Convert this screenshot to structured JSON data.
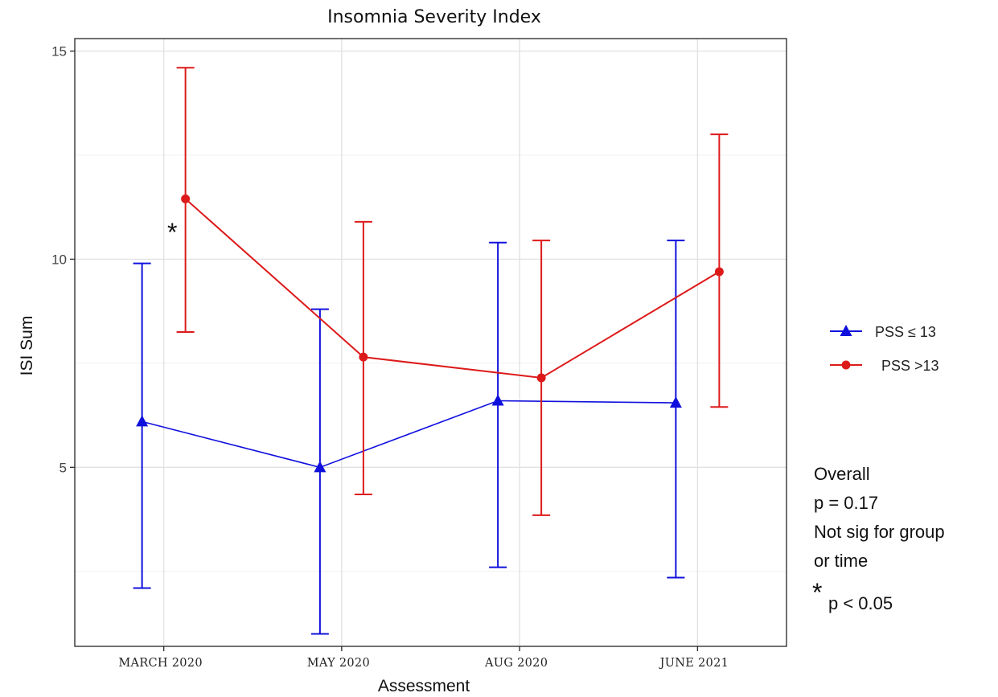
{
  "chart_data": {
    "type": "line",
    "title": "Insomnia Severity Index",
    "xlabel": "Assessment",
    "ylabel": "ISI Sum",
    "categories": [
      "MARCH 2020",
      "MAY 2020",
      "AUG 2020",
      "JUNE 2021"
    ],
    "ylim": [
      0.7,
      15.3
    ],
    "yticks": [
      5,
      10,
      15
    ],
    "grid": true,
    "legend_position": "right",
    "series": [
      {
        "name": "PSS ≤ 13",
        "color": "#1010dd",
        "marker": "triangle",
        "values": [
          6.1,
          5.0,
          6.6,
          6.55
        ],
        "lower": [
          2.1,
          1.0,
          2.6,
          2.35
        ],
        "upper": [
          9.9,
          8.8,
          10.4,
          10.45
        ]
      },
      {
        "name": "PSS >13",
        "color": "#dd1a1a",
        "marker": "circle",
        "values": [
          11.45,
          7.65,
          7.15,
          9.7
        ],
        "lower": [
          8.25,
          4.35,
          3.85,
          6.45
        ],
        "upper": [
          14.6,
          10.9,
          10.45,
          13.0
        ]
      }
    ],
    "annotations": {
      "significance_marker": "*",
      "notes": [
        "Overall",
        "p = 0.17",
        "Not sig for group",
        "or time"
      ],
      "footnote_symbol": "*",
      "footnote_text": "p < 0.05"
    }
  }
}
